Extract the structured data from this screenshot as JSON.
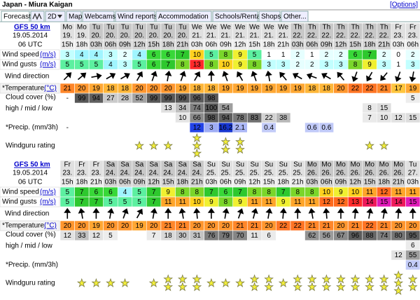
{
  "header": {
    "title": "Japan - Miura Kaigan",
    "options": "[Options]"
  },
  "tabs": [
    "Forecast",
    "2D",
    "Map",
    "Webcams",
    "Wind reports",
    "Accommodation",
    "Schools/Rentals",
    "Shops",
    "Other..."
  ],
  "labels": {
    "model": "GFS 50 km",
    "date": "19.05.2014",
    "run": "06 UTC",
    "wind_speed": "Wind speed",
    "wind_gusts": "Wind gusts",
    "unit_ms": "(m/s)",
    "wind_direction": "Wind direction",
    "temperature": "*Temperature",
    "unit_c": "(°C)",
    "cloud": "Cloud cover (%)",
    "cloud_levels": "high / mid / low",
    "precip": "*Precip. (mm/3h)",
    "rating": "Windguru rating"
  },
  "tables": [
    {
      "days": [
        "Mo",
        "Mo",
        "Tu",
        "Tu",
        "Tu",
        "Tu",
        "Tu",
        "Tu",
        "Tu",
        "We",
        "We",
        "We",
        "We",
        "We",
        "We",
        "We",
        "Th",
        "Th",
        "Th",
        "Th",
        "Th",
        "Th",
        "Th",
        "Fr",
        "Fr"
      ],
      "dates": [
        "19.",
        "19.",
        "20.",
        "20.",
        "20.",
        "20.",
        "20.",
        "20.",
        "20.",
        "21.",
        "21.",
        "21.",
        "21.",
        "21.",
        "21.",
        "21.",
        "22.",
        "22.",
        "22.",
        "22.",
        "22.",
        "22.",
        "22.",
        "23.",
        "23."
      ],
      "hours": [
        "15h",
        "18h",
        "03h",
        "06h",
        "09h",
        "12h",
        "15h",
        "18h",
        "21h",
        "03h",
        "06h",
        "09h",
        "12h",
        "15h",
        "18h",
        "21h",
        "03h",
        "06h",
        "09h",
        "12h",
        "15h",
        "18h",
        "21h",
        "03h",
        "06h"
      ],
      "wind_speed": [
        3,
        4,
        4,
        3,
        2,
        4,
        6,
        6,
        7,
        10,
        5,
        8,
        9,
        5,
        1,
        1,
        2,
        1,
        2,
        2,
        6,
        7,
        2,
        0,
        2
      ],
      "wind_gusts": [
        5,
        5,
        5,
        4,
        3,
        5,
        6,
        7,
        8,
        13,
        8,
        10,
        9,
        8,
        3,
        3,
        2,
        2,
        3,
        3,
        8,
        9,
        3,
        1,
        3
      ],
      "wind_direction": [
        45,
        50,
        80,
        60,
        60,
        30,
        20,
        10,
        20,
        30,
        0,
        340,
        330,
        340,
        350,
        320,
        300,
        290,
        300,
        320,
        200,
        210,
        220,
        200,
        190
      ],
      "temperature": [
        21,
        20,
        19,
        18,
        18,
        20,
        20,
        20,
        19,
        18,
        18,
        19,
        19,
        19,
        19,
        19,
        19,
        18,
        18,
        20,
        22,
        22,
        21,
        17,
        19
      ],
      "cloud_high": [
        "-",
        99,
        94,
        27,
        28,
        52,
        99,
        99,
        99,
        96,
        98,
        null,
        null,
        null,
        null,
        null,
        null,
        null,
        null,
        null,
        null,
        null,
        null,
        null,
        5
      ],
      "cloud_mid": [
        null,
        null,
        null,
        null,
        null,
        null,
        null,
        13,
        34,
        74,
        100,
        54,
        null,
        null,
        null,
        null,
        null,
        null,
        null,
        null,
        null,
        8,
        15,
        null,
        null
      ],
      "cloud_low": [
        null,
        null,
        null,
        null,
        null,
        null,
        null,
        null,
        10,
        66,
        98,
        94,
        78,
        83,
        22,
        38,
        null,
        null,
        null,
        null,
        null,
        7,
        10,
        12,
        15
      ],
      "precip": [
        "-",
        null,
        null,
        null,
        null,
        null,
        null,
        null,
        null,
        12,
        3,
        16.2,
        2.1,
        null,
        0.4,
        null,
        null,
        0.6,
        0.6,
        null,
        null,
        null,
        null,
        null,
        null
      ],
      "rating": [
        0,
        0,
        0,
        0,
        0,
        1,
        1,
        1,
        0,
        3,
        0,
        2,
        2,
        0,
        0,
        0,
        0,
        0,
        0,
        0,
        0,
        1,
        1,
        0,
        0
      ]
    },
    {
      "days": [
        "Fr",
        "Fr",
        "Fr",
        "Sa",
        "Sa",
        "Sa",
        "Sa",
        "Sa",
        "Sa",
        "Sa",
        "Su",
        "Su",
        "Su",
        "Su",
        "Su",
        "Su",
        "Su",
        "Mo",
        "Mo",
        "Mo",
        "Mo",
        "Mo",
        "Mo",
        "Mo",
        "Tu"
      ],
      "dates": [
        "23.",
        "23.",
        "23.",
        "24.",
        "24.",
        "24.",
        "24.",
        "24.",
        "24.",
        "24.",
        "25.",
        "25.",
        "25.",
        "25.",
        "25.",
        "25.",
        "25.",
        "26.",
        "26.",
        "26.",
        "26.",
        "26.",
        "26.",
        "26.",
        "27."
      ],
      "hours": [
        "15h",
        "18h",
        "21h",
        "03h",
        "06h",
        "09h",
        "12h",
        "15h",
        "18h",
        "21h",
        "03h",
        "06h",
        "09h",
        "12h",
        "15h",
        "18h",
        "21h",
        "03h",
        "06h",
        "09h",
        "12h",
        "15h",
        "18h",
        "21h",
        "03h"
      ],
      "wind_speed": [
        5,
        7,
        6,
        6,
        4,
        5,
        7,
        9,
        8,
        8,
        7,
        6,
        7,
        8,
        8,
        7,
        8,
        8,
        10,
        9,
        10,
        11,
        12,
        11,
        11
      ],
      "wind_gusts": [
        5,
        7,
        7,
        5,
        5,
        5,
        7,
        11,
        11,
        10,
        9,
        8,
        9,
        11,
        11,
        9,
        11,
        11,
        12,
        12,
        13,
        14,
        15,
        14,
        15
      ],
      "wind_direction": [
        0,
        350,
        0,
        10,
        20,
        30,
        10,
        0,
        350,
        355,
        0,
        10,
        20,
        15,
        10,
        5,
        0,
        350,
        355,
        0,
        5,
        10,
        10,
        5,
        0
      ],
      "temperature": [
        20,
        20,
        19,
        20,
        20,
        19,
        20,
        21,
        21,
        20,
        20,
        20,
        21,
        21,
        20,
        22,
        22,
        21,
        21,
        20,
        21,
        22,
        21,
        20,
        20
      ],
      "cloud_high": [
        12,
        33,
        12,
        5,
        null,
        null,
        7,
        18,
        30,
        31,
        76,
        79,
        70,
        11,
        6,
        null,
        null,
        62,
        56,
        67,
        96,
        88,
        74,
        80,
        95
      ],
      "cloud_mid": [
        null,
        null,
        null,
        null,
        null,
        null,
        null,
        null,
        null,
        null,
        null,
        null,
        null,
        null,
        null,
        null,
        null,
        null,
        null,
        null,
        null,
        null,
        null,
        null,
        6
      ],
      "cloud_low": [
        null,
        null,
        null,
        null,
        null,
        null,
        null,
        null,
        null,
        null,
        null,
        null,
        null,
        null,
        null,
        null,
        null,
        null,
        null,
        null,
        null,
        null,
        null,
        12,
        55
      ],
      "precip": [
        null,
        null,
        null,
        null,
        null,
        null,
        null,
        null,
        null,
        null,
        null,
        null,
        null,
        null,
        null,
        null,
        null,
        null,
        null,
        null,
        null,
        null,
        null,
        null,
        0.4
      ],
      "rating": [
        0,
        1,
        1,
        1,
        1,
        0,
        1,
        2,
        2,
        2,
        1,
        1,
        1,
        2,
        2,
        1,
        2,
        2,
        2,
        2,
        2,
        2,
        2,
        3,
        2
      ]
    }
  ]
}
